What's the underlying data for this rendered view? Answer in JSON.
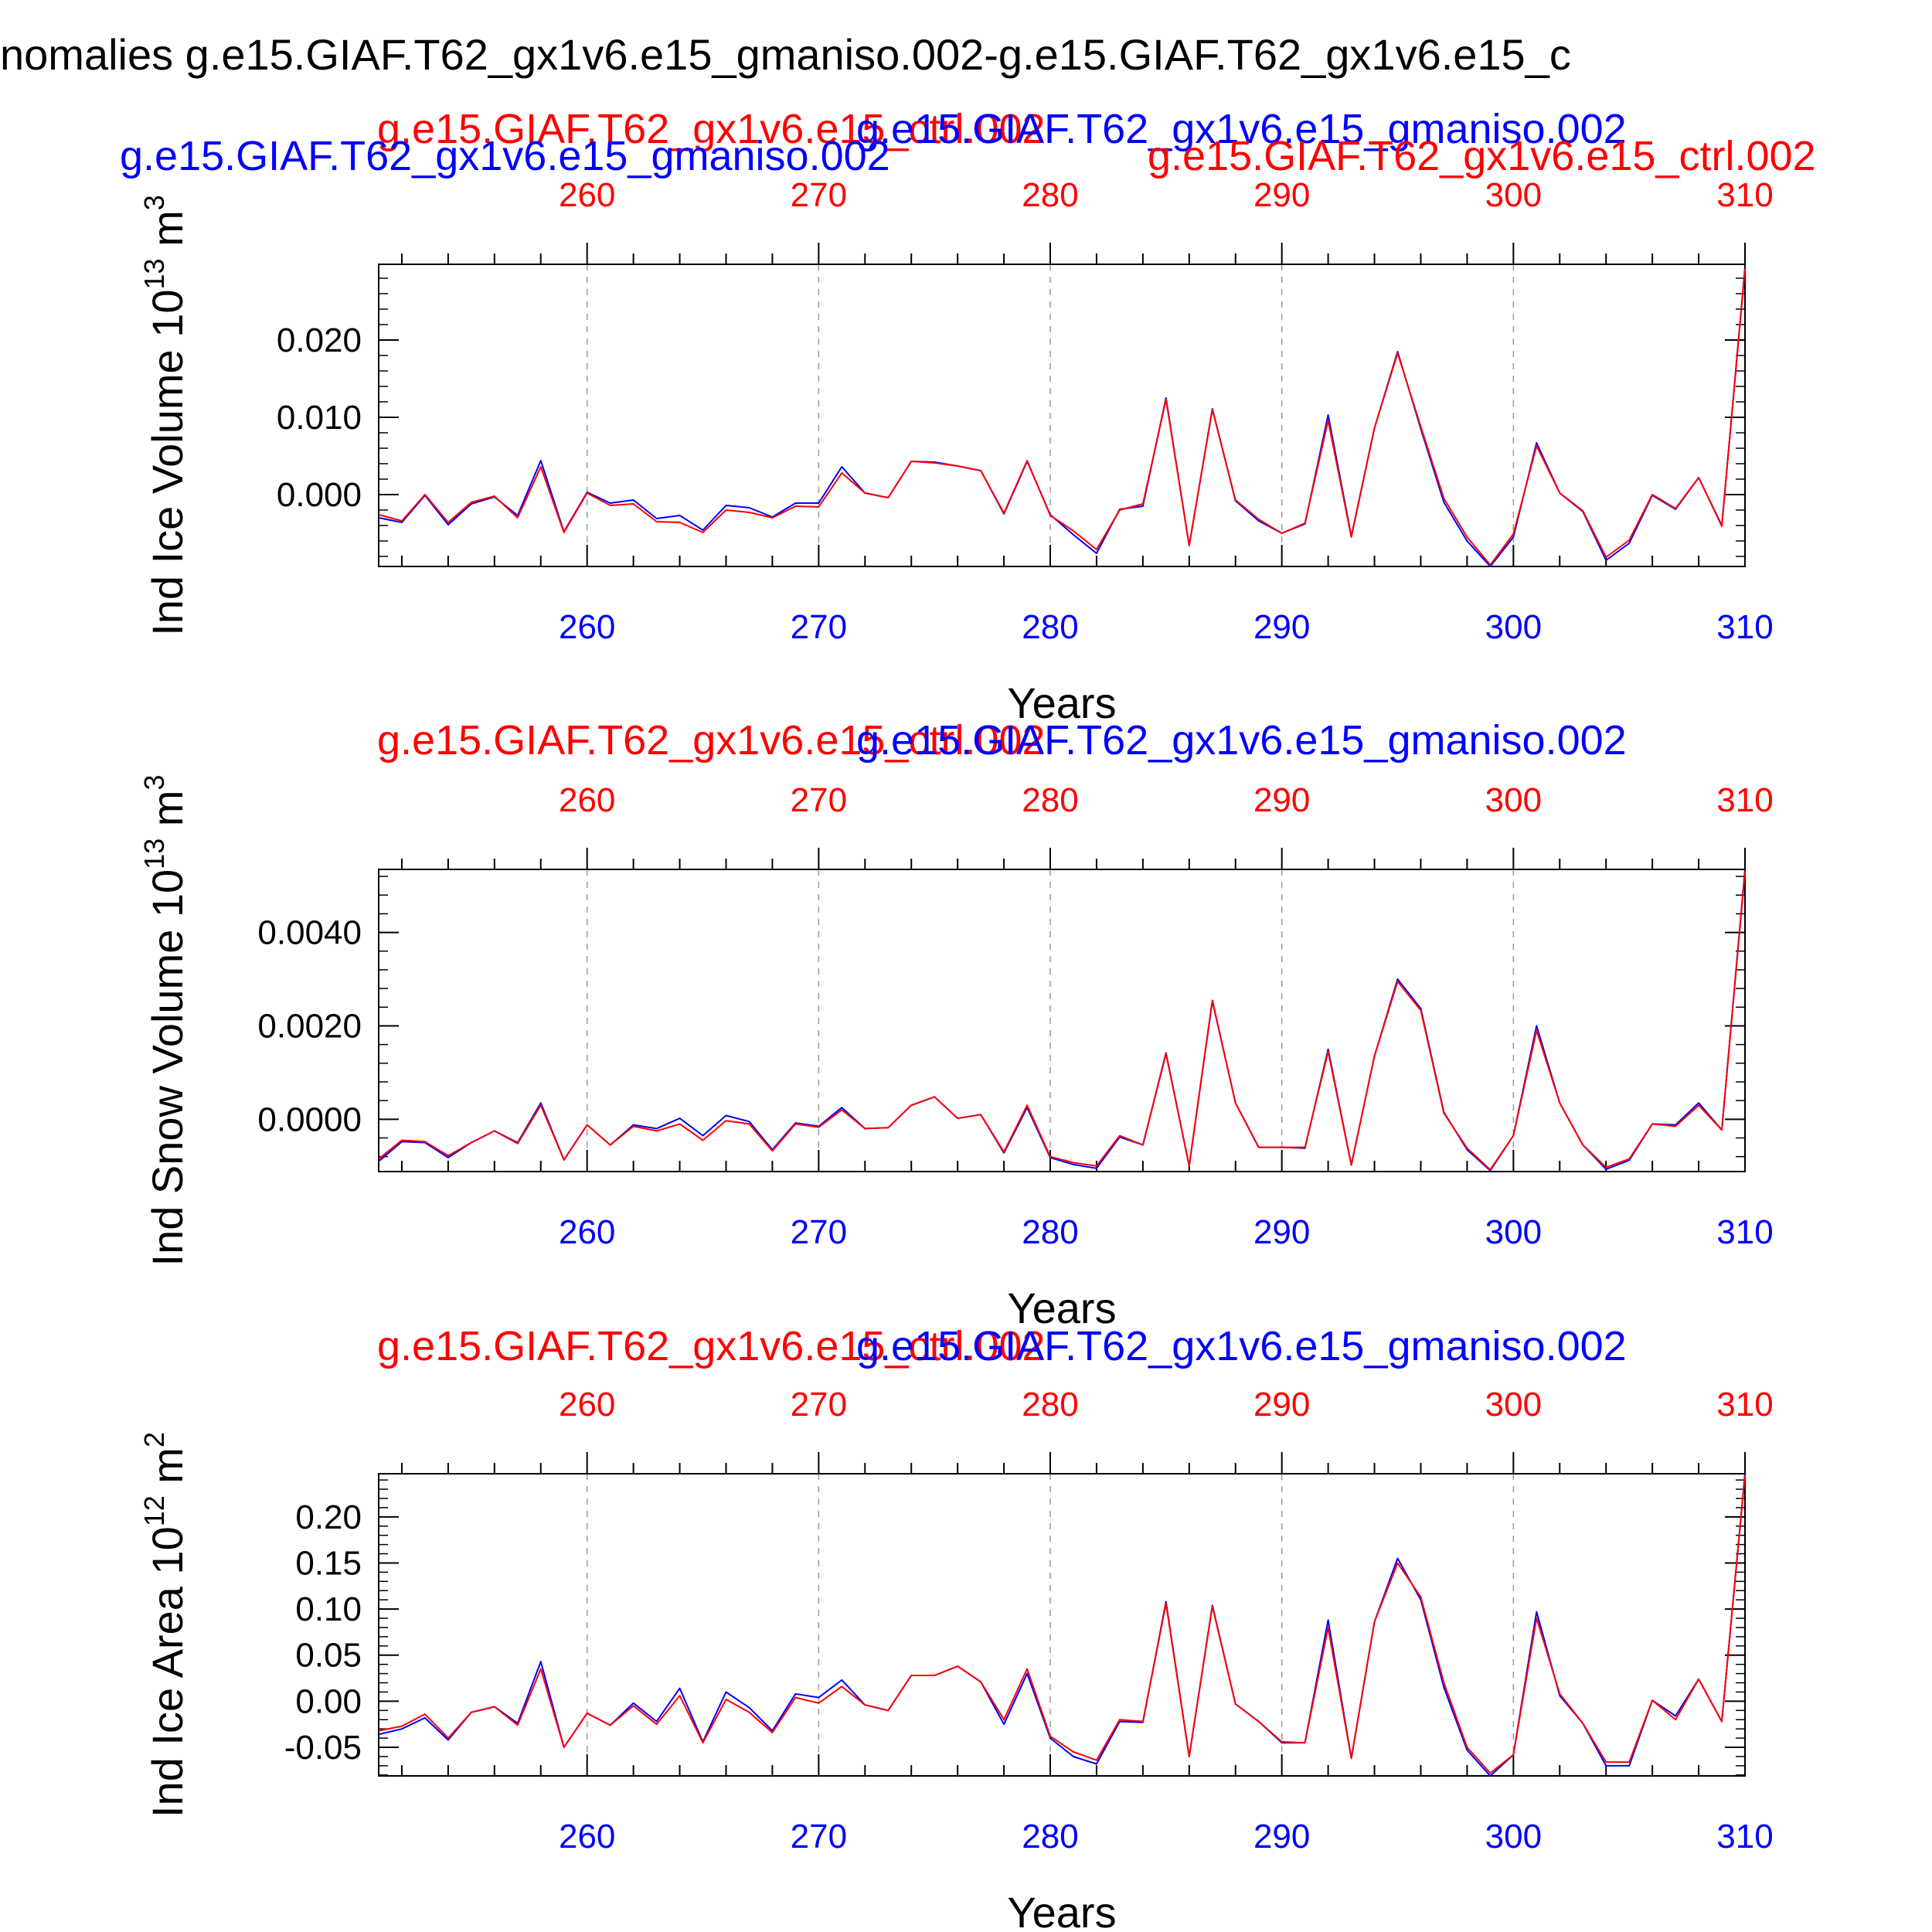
{
  "colors": {
    "ctrl": "#ff0000",
    "gmaniso": "#0000ff",
    "text": "#000000",
    "grid": "#999999"
  },
  "figure": {
    "main_title": "nomalies g.e15.GIAF.T62_gx1v6.e15_gmaniso.002-g.e15.GIAF.T62_gx1v6.e15_c",
    "top_labels": {
      "ctrl_left": "g.e15.GIAF.T62_gx1v6.e15_ctrl.002",
      "gmaniso_left": "g.e15.GIAF.T62_gx1v6.e15_gmaniso.002",
      "gmaniso_right": "g.e15.GIAF.T62_gx1v6.e15_gmaniso.002",
      "ctrl_right": "g.e15.GIAF.T62_gx1v6.e15_ctrl.002"
    }
  },
  "chart_data": [
    {
      "type": "line",
      "ylabel": "Ind Ice Volume 10",
      "ylabel_exp": "13",
      "ylabel_unit": " m",
      "ylabel_unit_exp": "3",
      "xlabel": "Years",
      "top_label_ctrl": "g.e15.GIAF.T62_gx1v6.e15_ctrl.002",
      "top_label_gmaniso": "g.e15.GIAF.T62_gx1v6.e15_gmaniso.002",
      "xlim": [
        251,
        310
      ],
      "ylim": [
        -0.0093,
        0.0298
      ],
      "xticks": [
        "260",
        "270",
        "280",
        "290",
        "300",
        "310"
      ],
      "yticks": [
        0.0,
        0.01,
        0.02
      ],
      "ytick_labels": [
        "0.000",
        "0.010",
        "0.020"
      ],
      "y_minor_step": 0.002,
      "x": [
        251,
        252,
        253,
        254,
        255,
        256,
        257,
        258,
        259,
        260,
        261,
        262,
        263,
        264,
        265,
        266,
        267,
        268,
        269,
        270,
        271,
        272,
        273,
        274,
        275,
        276,
        277,
        278,
        279,
        280,
        281,
        282,
        283,
        284,
        285,
        286,
        287,
        288,
        289,
        290,
        291,
        292,
        293,
        294,
        295,
        296,
        297,
        298,
        299,
        300,
        301,
        302,
        303,
        304,
        305,
        306,
        307,
        308,
        309,
        310
      ],
      "series": [
        {
          "name": "g.e15.GIAF.T62_gx1v6.e15_gmaniso.002",
          "color": "#0000ff",
          "values": [
            -0.003,
            -0.0036,
            -0.0001,
            -0.0039,
            -0.0012,
            -0.0003,
            -0.0027,
            0.0044,
            -0.0048,
            0.0003,
            -0.0011,
            -0.0007,
            -0.0031,
            -0.0027,
            -0.0046,
            -0.0014,
            -0.0017,
            -0.0029,
            -0.0011,
            -0.0011,
            0.0036,
            0.0002,
            -0.0004,
            0.0043,
            0.0042,
            0.0037,
            0.0031,
            -0.0025,
            0.0043,
            -0.0026,
            -0.0052,
            -0.0076,
            -0.0019,
            -0.0015,
            0.0125,
            -0.0066,
            0.0111,
            -0.0008,
            -0.0034,
            -0.005,
            -0.0038,
            0.0103,
            -0.0054,
            0.0086,
            0.0185,
            0.0085,
            -0.001,
            -0.006,
            -0.0093,
            -0.0055,
            0.0067,
            0.0002,
            -0.0022,
            -0.0085,
            -0.0063,
            -0.0001,
            -0.0019,
            0.0022,
            -0.004,
            0.0294
          ]
        },
        {
          "name": "g.e15.GIAF.T62_gx1v6.e15_ctrl.002",
          "color": "#ff0000",
          "values": [
            -0.0026,
            -0.0034,
            0.0,
            -0.0036,
            -0.001,
            -0.0002,
            -0.003,
            0.0036,
            -0.0049,
            0.0002,
            -0.0014,
            -0.0012,
            -0.0035,
            -0.0036,
            -0.0049,
            -0.002,
            -0.0023,
            -0.003,
            -0.0015,
            -0.0016,
            0.0028,
            0.0002,
            -0.0004,
            0.0043,
            0.0041,
            0.0037,
            0.0031,
            -0.0024,
            0.0044,
            -0.0027,
            -0.0047,
            -0.0071,
            -0.002,
            -0.0012,
            0.0123,
            -0.0066,
            0.011,
            -0.0007,
            -0.0032,
            -0.005,
            -0.0037,
            0.0096,
            -0.0055,
            0.0086,
            0.0183,
            0.0088,
            -0.0005,
            -0.0055,
            -0.0091,
            -0.0051,
            0.0063,
            0.0002,
            -0.0021,
            -0.0081,
            -0.0059,
            0.0,
            -0.0018,
            0.0022,
            -0.0041,
            0.0292
          ]
        }
      ]
    },
    {
      "type": "line",
      "ylabel": "Ind Snow Volume 10",
      "ylabel_exp": "13",
      "ylabel_unit": " m",
      "ylabel_unit_exp": "3",
      "xlabel": "Years",
      "top_label_ctrl": "g.e15.GIAF.T62_gx1v6.e15_ctrl.002",
      "top_label_gmaniso": "g.e15.GIAF.T62_gx1v6.e15_gmaniso.002",
      "xlim": [
        251,
        310
      ],
      "ylim": [
        -0.00112,
        0.00535
      ],
      "xticks": [
        "260",
        "270",
        "280",
        "290",
        "300",
        "310"
      ],
      "yticks": [
        0.0,
        0.002,
        0.004
      ],
      "ytick_labels": [
        "0.0000",
        "0.0020",
        "0.0040"
      ],
      "y_minor_step": 0.0004,
      "x": [
        251,
        252,
        253,
        254,
        255,
        256,
        257,
        258,
        259,
        260,
        261,
        262,
        263,
        264,
        265,
        266,
        267,
        268,
        269,
        270,
        271,
        272,
        273,
        274,
        275,
        276,
        277,
        278,
        279,
        280,
        281,
        282,
        283,
        284,
        285,
        286,
        287,
        288,
        289,
        290,
        291,
        292,
        293,
        294,
        295,
        296,
        297,
        298,
        299,
        300,
        301,
        302,
        303,
        304,
        305,
        306,
        307,
        308,
        309,
        310
      ],
      "series": [
        {
          "name": "g.e15.GIAF.T62_gx1v6.e15_gmaniso.002",
          "color": "#0000ff",
          "values": [
            -0.0009,
            -0.00048,
            -0.0005,
            -0.00082,
            -0.0005,
            -0.00025,
            -0.0005,
            0.00035,
            -0.00087,
            -0.00012,
            -0.00055,
            -0.00012,
            -0.0002,
            2e-05,
            -0.00035,
            8e-05,
            -5e-05,
            -0.00065,
            -8e-05,
            -0.00015,
            0.00025,
            -0.0002,
            -0.00018,
            0.0003,
            0.00048,
            2e-05,
            0.0001,
            -0.00072,
            0.00025,
            -0.00082,
            -0.00097,
            -0.00105,
            -0.00038,
            -0.00055,
            0.00142,
            -0.001,
            0.00253,
            0.00035,
            -0.0006,
            -0.0006,
            -0.00062,
            0.0015,
            -0.00098,
            0.00135,
            0.003,
            0.00237,
            0.00015,
            -0.00065,
            -0.0011,
            -0.00035,
            0.002,
            0.00035,
            -0.00055,
            -0.00107,
            -0.00088,
            -0.0001,
            -0.00012,
            0.00035,
            -0.00023,
            0.00535
          ]
        },
        {
          "name": "g.e15.GIAF.T62_gx1v6.e15_ctrl.002",
          "color": "#ff0000",
          "values": [
            -0.00085,
            -0.00045,
            -0.00048,
            -0.00078,
            -0.0005,
            -0.00025,
            -0.00052,
            0.0003,
            -0.00087,
            -0.00012,
            -0.00055,
            -0.00015,
            -0.00025,
            -0.0001,
            -0.00045,
            -3e-05,
            -0.0001,
            -0.00068,
            -0.0001,
            -0.00017,
            0.0002,
            -0.0002,
            -0.00018,
            0.0003,
            0.00048,
            2e-05,
            0.0001,
            -0.0007,
            0.0003,
            -0.0008,
            -0.00093,
            -0.001,
            -0.00035,
            -0.00055,
            0.0014,
            -0.001,
            0.00255,
            0.00035,
            -0.0006,
            -0.0006,
            -0.0006,
            0.00145,
            -0.00098,
            0.00135,
            0.00295,
            0.00233,
            0.00013,
            -0.00062,
            -0.00108,
            -0.00035,
            0.0019,
            0.00035,
            -0.00055,
            -0.00103,
            -0.00085,
            -0.0001,
            -0.00015,
            0.0003,
            -0.00023,
            0.0053
          ]
        }
      ]
    },
    {
      "type": "line",
      "ylabel": "Ind Ice Area 10",
      "ylabel_exp": "12",
      "ylabel_unit": " m",
      "ylabel_unit_exp": "2",
      "xlabel": "Years",
      "top_label_ctrl": "g.e15.GIAF.T62_gx1v6.e15_ctrl.002",
      "top_label_gmaniso": "g.e15.GIAF.T62_gx1v6.e15_gmaniso.002",
      "xlim": [
        251,
        310
      ],
      "ylim": [
        -0.081,
        0.2468
      ],
      "xticks": [
        "260",
        "270",
        "280",
        "290",
        "300",
        "310"
      ],
      "yticks": [
        -0.05,
        0.0,
        0.05,
        0.1,
        0.15,
        0.2
      ],
      "ytick_labels": [
        "-0.05",
        "0.00",
        "0.05",
        "0.10",
        "0.15",
        "0.20"
      ],
      "y_minor_step": 0.01,
      "x": [
        251,
        252,
        253,
        254,
        255,
        256,
        257,
        258,
        259,
        260,
        261,
        262,
        263,
        264,
        265,
        266,
        267,
        268,
        269,
        270,
        271,
        272,
        273,
        274,
        275,
        276,
        277,
        278,
        279,
        280,
        281,
        282,
        283,
        284,
        285,
        286,
        287,
        288,
        289,
        290,
        291,
        292,
        293,
        294,
        295,
        296,
        297,
        298,
        299,
        300,
        301,
        302,
        303,
        304,
        305,
        306,
        307,
        308,
        309,
        310
      ],
      "series": [
        {
          "name": "g.e15.GIAF.T62_gx1v6.e15_gmaniso.002",
          "color": "#0000ff",
          "values": [
            -0.036,
            -0.03,
            -0.018,
            -0.042,
            -0.012,
            -0.006,
            -0.024,
            0.043,
            -0.05,
            -0.013,
            -0.026,
            -0.002,
            -0.022,
            0.014,
            -0.044,
            0.01,
            -0.007,
            -0.032,
            0.008,
            0.004,
            0.023,
            -0.004,
            -0.01,
            0.028,
            0.028,
            0.038,
            0.021,
            -0.025,
            0.03,
            -0.04,
            -0.06,
            -0.068,
            -0.022,
            -0.023,
            0.108,
            -0.06,
            0.104,
            -0.003,
            -0.022,
            -0.045,
            -0.045,
            0.088,
            -0.062,
            0.086,
            0.155,
            0.11,
            0.015,
            -0.053,
            -0.081,
            -0.058,
            0.097,
            0.006,
            -0.024,
            -0.07,
            -0.07,
            0.001,
            -0.016,
            0.024,
            -0.022,
            0.247
          ]
        },
        {
          "name": "g.e15.GIAF.T62_gx1v6.e15_ctrl.002",
          "color": "#ff0000",
          "values": [
            -0.032,
            -0.027,
            -0.014,
            -0.04,
            -0.012,
            -0.006,
            -0.026,
            0.035,
            -0.05,
            -0.013,
            -0.026,
            -0.005,
            -0.025,
            0.006,
            -0.045,
            0.002,
            -0.012,
            -0.034,
            0.004,
            -0.002,
            0.016,
            -0.004,
            -0.01,
            0.028,
            0.028,
            0.038,
            0.021,
            -0.02,
            0.035,
            -0.038,
            -0.055,
            -0.064,
            -0.02,
            -0.022,
            0.106,
            -0.06,
            0.103,
            -0.003,
            -0.022,
            -0.044,
            -0.045,
            0.08,
            -0.062,
            0.086,
            0.15,
            0.113,
            0.02,
            -0.05,
            -0.078,
            -0.058,
            0.09,
            0.008,
            -0.024,
            -0.066,
            -0.066,
            0.001,
            -0.02,
            0.024,
            -0.022,
            0.245
          ]
        }
      ]
    }
  ]
}
